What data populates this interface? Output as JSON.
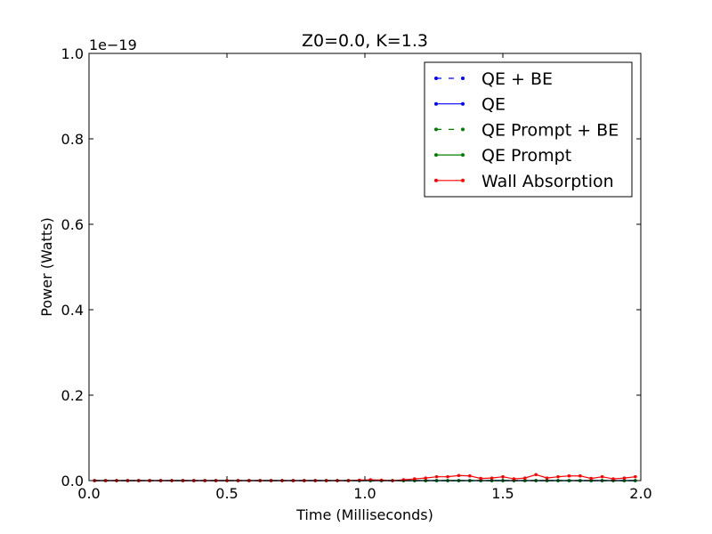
{
  "chart_data": {
    "type": "line",
    "title": "Z0=0.0, K=1.3",
    "xlabel": "Time (Milliseconds)",
    "ylabel": "Power (Watts)",
    "y_offset_text": "1e−19",
    "xlim": [
      0.0,
      2.0
    ],
    "ylim": [
      0.0,
      1.0
    ],
    "x_ticks": [
      0.0,
      0.5,
      1.0,
      1.5,
      2.0
    ],
    "x_tick_labels": [
      "0.0",
      "0.5",
      "1.0",
      "1.5",
      "2.0"
    ],
    "y_ticks": [
      0.0,
      0.2,
      0.4,
      0.6,
      0.8,
      1.0
    ],
    "y_tick_labels": [
      "0.0",
      "0.2",
      "0.4",
      "0.6",
      "0.8",
      "1.0"
    ],
    "grid": false,
    "legend_position": "top-right",
    "x": [
      0.02,
      0.06,
      0.1,
      0.14,
      0.18,
      0.22,
      0.26,
      0.3,
      0.34,
      0.38,
      0.42,
      0.46,
      0.5,
      0.54,
      0.58,
      0.62,
      0.66,
      0.7,
      0.74,
      0.78,
      0.82,
      0.86,
      0.9,
      0.94,
      0.98,
      1.02,
      1.06,
      1.1,
      1.14,
      1.18,
      1.22,
      1.26,
      1.3,
      1.34,
      1.38,
      1.42,
      1.46,
      1.5,
      1.54,
      1.58,
      1.62,
      1.66,
      1.7,
      1.74,
      1.78,
      1.82,
      1.86,
      1.9,
      1.94,
      1.98
    ],
    "series": [
      {
        "name": "QE + BE",
        "color": "#0000ff",
        "linestyle": "dashed",
        "values": [
          0,
          0,
          0,
          0,
          0,
          0,
          0,
          0,
          0,
          0,
          0,
          0,
          0,
          0,
          0,
          0,
          0,
          0,
          0,
          0,
          0,
          0,
          0,
          0,
          0,
          0,
          0,
          0,
          0,
          0,
          0,
          0,
          0,
          0,
          0,
          0,
          0,
          0,
          0,
          0,
          0,
          0,
          0,
          0,
          0,
          0,
          0,
          0,
          0,
          0
        ]
      },
      {
        "name": "QE",
        "color": "#0000ff",
        "linestyle": "solid",
        "values": [
          0,
          0,
          0,
          0,
          0,
          0,
          0,
          0,
          0,
          0,
          0,
          0,
          0,
          0,
          0,
          0,
          0,
          0,
          0,
          0,
          0,
          0,
          0,
          0,
          0,
          0,
          0,
          0,
          0,
          0,
          0,
          0,
          0,
          0,
          0,
          0,
          0,
          0,
          0,
          0,
          0,
          0,
          0,
          0,
          0,
          0,
          0,
          0,
          0,
          0
        ]
      },
      {
        "name": "QE Prompt + BE",
        "color": "#008000",
        "linestyle": "dashed",
        "values": [
          0,
          0,
          0,
          0,
          0,
          0,
          0,
          0,
          0,
          0,
          0,
          0,
          0,
          0,
          0,
          0,
          0,
          0,
          0,
          0,
          0,
          0,
          0,
          0,
          0,
          0,
          0,
          0,
          0,
          0,
          0,
          0,
          0,
          0,
          0,
          0,
          0,
          0,
          0,
          0,
          0,
          0,
          0,
          0,
          0,
          0,
          0,
          0,
          0,
          0
        ]
      },
      {
        "name": "QE Prompt",
        "color": "#008000",
        "linestyle": "solid",
        "values": [
          0,
          0,
          0,
          0,
          0,
          0,
          0,
          0,
          0,
          0,
          0,
          0,
          0,
          0,
          0,
          0,
          0,
          0,
          0,
          0,
          0,
          0,
          0,
          0,
          0,
          0,
          0,
          0,
          0,
          0,
          0,
          0,
          0,
          0,
          0,
          0,
          0,
          0,
          0,
          0,
          0,
          0,
          0,
          0,
          0,
          0,
          0,
          0,
          0,
          0
        ]
      },
      {
        "name": "Wall Absorption",
        "color": "#ff0000",
        "linestyle": "solid",
        "values": [
          0,
          0,
          0,
          0,
          0,
          0,
          0,
          0,
          0,
          0,
          0,
          0,
          0,
          0,
          0,
          0,
          0,
          0,
          0,
          0,
          0,
          0,
          0,
          0,
          0.001,
          0.002,
          0.001,
          0,
          0.002,
          0.004,
          0.006,
          0.009,
          0.009,
          0.012,
          0.011,
          0.005,
          0.006,
          0.009,
          0.004,
          0.006,
          0.014,
          0.006,
          0.009,
          0.011,
          0.011,
          0.005,
          0.009,
          0.004,
          0.006,
          0.009
        ]
      }
    ]
  }
}
